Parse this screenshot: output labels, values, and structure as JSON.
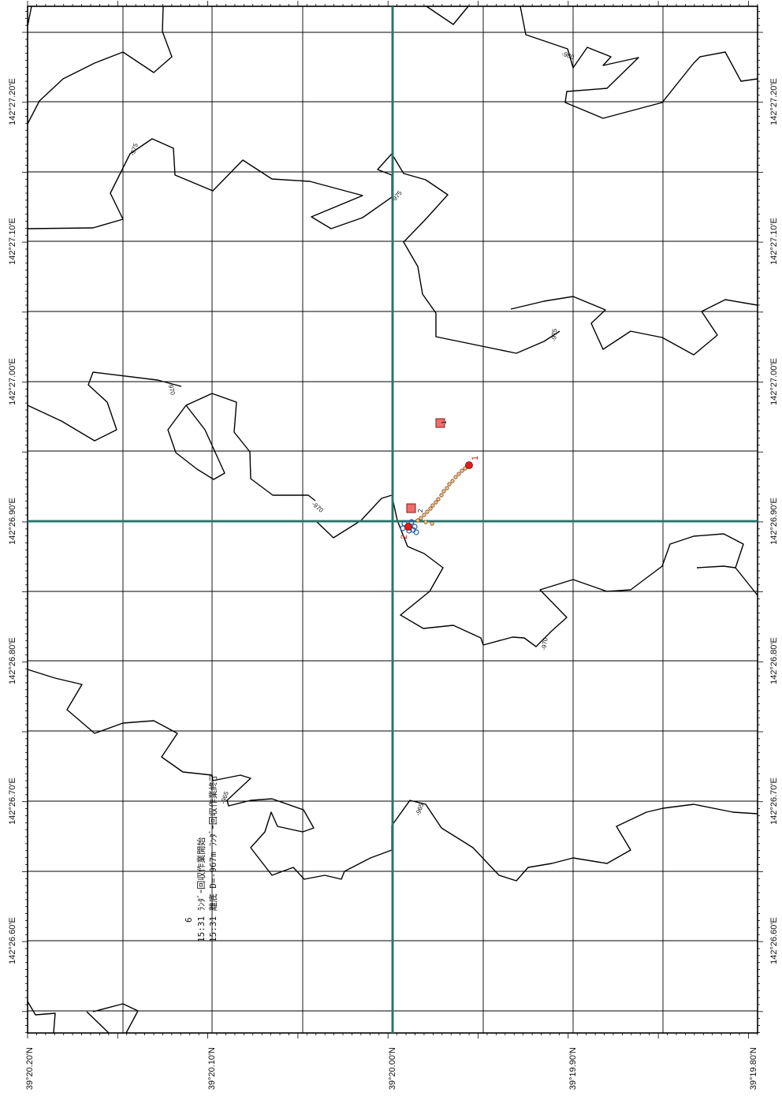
{
  "axes": {
    "left_labels": [
      "142°27.20'E",
      "142°27.10'E",
      "142°27.00'E",
      "142°26.90'E",
      "142°26.80'E",
      "142°26.70'E",
      "142°26.60'E"
    ],
    "right_labels": [
      "142°27.20'E",
      "142°27.10'E",
      "142°27.00'E",
      "142°26.90'E",
      "142°26.80'E",
      "142°26.70'E",
      "142°26.60'E"
    ],
    "bottom_labels": [
      "39°20.20'N",
      "39°20.10'N",
      "39°20.00'N",
      "39°19.90'N",
      "39°19.80'N"
    ]
  },
  "contour_labels": [
    "-980",
    "-975",
    "-975",
    "-975",
    "-970",
    "-970",
    "-970",
    "-965",
    "-965"
  ],
  "markers": {
    "square_1": "1",
    "square_2": "2",
    "circle_1": "1",
    "circle_2": "2"
  },
  "note": {
    "line1": "6",
    "line2": "15:31  ﾗﾝﾀﾞｰ回収作業開始",
    "line3": "15:31  離底  D=-967m  ﾗﾝﾀﾞｰ回収作業終了"
  },
  "colors": {
    "frame": "#000000",
    "grid": "#000000",
    "crosshair": "#2e8b57",
    "crosshair_core": "#1f4fa0",
    "square_fill": "#f26d6d",
    "track_point": "#e0a060",
    "position_dot": "#e11d1d",
    "cluster": "#1e5aa8",
    "marker_text": "#e11d1d"
  }
}
